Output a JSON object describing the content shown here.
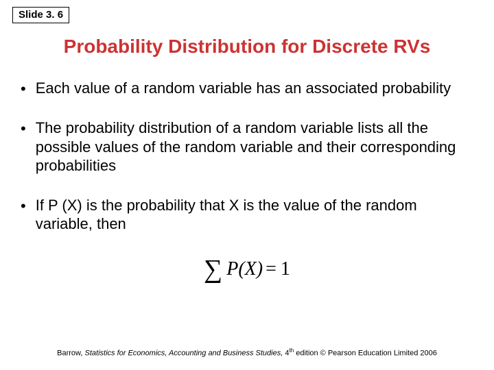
{
  "slide_number": "Slide 3. 6",
  "title": "Probability Distribution for Discrete RVs",
  "bullets": [
    "Each value of a random variable has an associated probability",
    "The probability distribution of a random variable lists all the possible values of the random variable and their corresponding probabilities",
    "If P (X) is the probability that X is the value of the random variable, then"
  ],
  "equation": {
    "sigma": "∑",
    "px": "P(X)",
    "equals": "=",
    "one": "1"
  },
  "footer": {
    "author": "Barrow, ",
    "book_title": "Statistics for Economics, Accounting and Business Studies,",
    "edition_prefix": " 4",
    "edition_suffix": "th",
    "publisher": " edition © Pearson Education Limited 2006"
  },
  "colors": {
    "title_color": "#cc3333",
    "text_color": "#000000",
    "background": "#ffffff",
    "border_color": "#000000"
  },
  "typography": {
    "title_fontsize": 28,
    "body_fontsize": 22,
    "footer_fontsize": 11,
    "slide_number_fontsize": 15
  }
}
